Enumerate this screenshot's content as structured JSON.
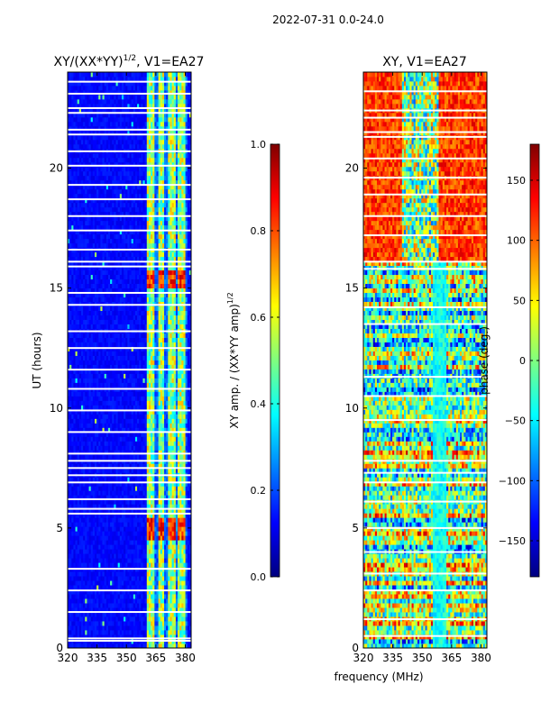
{
  "suptitle": "2022-07-31 0.0-24.0",
  "xlabel": "frequency (MHz)",
  "colors": {
    "jet": [
      "#00007f",
      "#0000ff",
      "#007fff",
      "#00ffff",
      "#7fff7f",
      "#ffff00",
      "#ff7f00",
      "#ff0000",
      "#7f0000"
    ],
    "flag": "#ffffff",
    "axis": "#000000"
  },
  "chart_data": [
    {
      "type": "heatmap",
      "title_main": "XY/(XX*YY)",
      "title_exp": "1/2",
      "title_suffix": ", V1=EA27",
      "xlabel": "",
      "ylabel": "UT (hours)",
      "xlim": [
        320,
        383
      ],
      "ylim": [
        0,
        24
      ],
      "xticks": [
        320,
        335,
        350,
        365,
        380
      ],
      "yticks": [
        0,
        5,
        10,
        15,
        20
      ],
      "colorbar": {
        "label_main": "XY amp. / (XX*YY amp)",
        "label_exp": "1/2",
        "range": [
          0.0,
          1.0
        ],
        "ticks": [
          "0.0",
          "0.2",
          "0.4",
          "0.6",
          "0.8",
          "1.0"
        ],
        "tick_values": [
          0.0,
          0.2,
          0.4,
          0.6,
          0.8,
          1.0
        ]
      },
      "description_values": {
        "background": 0.1,
        "band_range_mhz": [
          360,
          381
        ],
        "band_peak": 0.95
      },
      "flagged_ut_hours": [
        0.3,
        0.4,
        1.5,
        2.4,
        3.3,
        5.6,
        5.8,
        6.2,
        6.9,
        7.2,
        7.5,
        7.8,
        8.1,
        9.0,
        9.9,
        10.8,
        11.6,
        12.5,
        13.2,
        14.3,
        14.8,
        15.9,
        16.1,
        16.6,
        17.4,
        18.0,
        18.7,
        19.3,
        20.1,
        20.7,
        21.4,
        21.6,
        22.3,
        22.5,
        23.1,
        23.6
      ]
    },
    {
      "type": "heatmap",
      "title_main": "XY, V1=EA27",
      "xlabel": "",
      "ylabel": "",
      "xlim": [
        320,
        383
      ],
      "ylim": [
        0,
        24
      ],
      "xticks": [
        320,
        335,
        350,
        365,
        380
      ],
      "yticks": [
        0,
        5,
        10,
        15,
        20
      ],
      "colorbar": {
        "label_main": "phase (deg.)",
        "range": [
          -180,
          180
        ],
        "ticks": [
          "−150",
          "−100",
          "−50",
          "0",
          "50",
          "100",
          "150"
        ],
        "tick_values": [
          -150,
          -100,
          -50,
          0,
          50,
          100,
          150
        ]
      },
      "description_values": {
        "upper_block_ut": [
          16.2,
          24
        ],
        "upper_block_phase_deg": 150
      },
      "flagged_ut_hours": [
        0.5,
        1.2,
        2.4,
        3.1,
        4.0,
        5.0,
        6.1,
        6.9,
        7.3,
        7.8,
        9.5,
        10.5,
        11.3,
        13.5,
        14.2,
        15.8,
        16.1,
        17.2,
        18.0,
        18.9,
        19.6,
        20.4,
        21.3,
        21.5,
        22.1,
        22.4,
        23.2
      ]
    }
  ]
}
